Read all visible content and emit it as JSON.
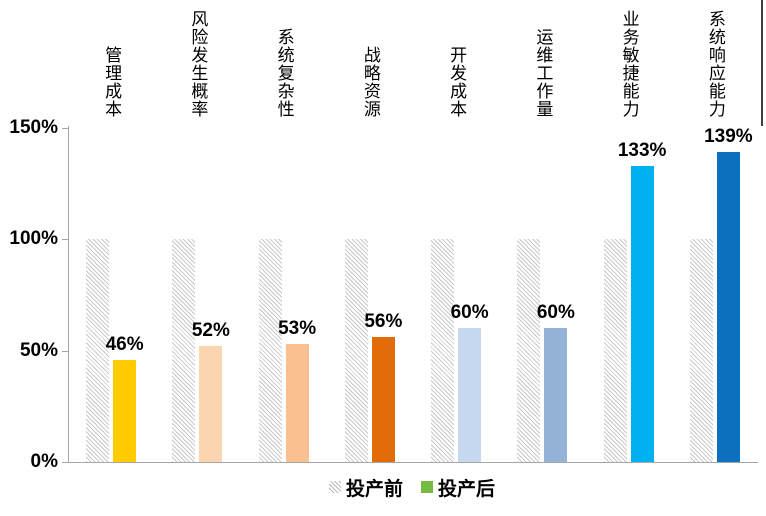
{
  "chart_data": {
    "type": "bar",
    "title": "",
    "categories": [
      "管理成本",
      "风险发生概率",
      "系统复杂性",
      "战略资源",
      "开发成本",
      "运维工作量",
      "业务敏捷能力",
      "系统响应能力"
    ],
    "series": [
      {
        "name": "投产前",
        "marker": "hatched",
        "values": [
          100,
          100,
          100,
          100,
          100,
          100,
          100,
          100
        ]
      },
      {
        "name": "投产后",
        "marker_color": "#76BC43",
        "values": [
          46,
          52,
          53,
          56,
          60,
          60,
          133,
          139
        ],
        "bar_colors": [
          "#FFCC00",
          "#FBD5AF",
          "#FAC090",
          "#E36C0A",
          "#C6D9F1",
          "#95B3D7",
          "#00B0F0",
          "#0B70C0"
        ]
      }
    ],
    "data_labels": [
      "46%",
      "52%",
      "53%",
      "56%",
      "60%",
      "60%",
      "133%",
      "139%"
    ],
    "y_ticks": [
      {
        "value": 0,
        "label": "0%"
      },
      {
        "value": 50,
        "label": "50%"
      },
      {
        "value": 100,
        "label": "100%"
      },
      {
        "value": 150,
        "label": "150%"
      }
    ],
    "ylim": [
      0,
      150
    ],
    "xlabel": "",
    "ylabel": "",
    "grid": false,
    "legend_position": "bottom",
    "axis_color": "#a6a6a6",
    "hatch_color": "#c9c9c9"
  }
}
